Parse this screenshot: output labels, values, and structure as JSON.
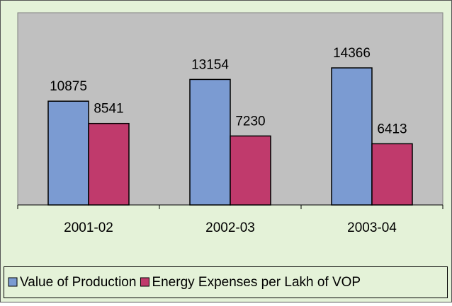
{
  "chart_data": {
    "type": "bar",
    "categories": [
      "2001-02",
      "2002-03",
      "2003-04"
    ],
    "series": [
      {
        "name": "Value of Production",
        "color": "#7b9bd2",
        "values": [
          10875,
          13154,
          14366
        ]
      },
      {
        "name": "Energy Expenses per Lakh of VOP",
        "color": "#c03a6c",
        "values": [
          8541,
          7230,
          6413
        ]
      }
    ],
    "ylim": [
      0,
      20000
    ]
  }
}
